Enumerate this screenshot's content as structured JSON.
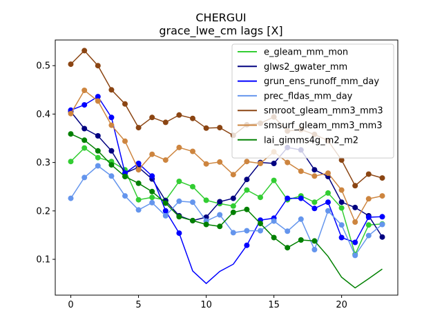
{
  "chart_data": {
    "type": "line",
    "title": "CHERGUI",
    "subtitle": "grace_lwe_cm lags [X]",
    "xlabel": "",
    "ylabel": "",
    "xlim": [
      -1.15,
      24.15
    ],
    "ylim": [
      0.026,
      0.553
    ],
    "xticks": [
      0,
      5,
      10,
      15,
      20
    ],
    "yticks": [
      0.1,
      0.2,
      0.3,
      0.4,
      0.5
    ],
    "ytick_labels": [
      "0.1",
      "0.2",
      "0.3",
      "0.4",
      "0.5"
    ],
    "grid": false,
    "legend_position": "top-right",
    "x": [
      0,
      1,
      2,
      3,
      4,
      5,
      6,
      7,
      8,
      9,
      10,
      11,
      12,
      13,
      14,
      15,
      16,
      17,
      18,
      19,
      20,
      21,
      22,
      23
    ],
    "series": [
      {
        "name": "e_gleam_mm_mon",
        "color": "#32cd32",
        "values": [
          0.302,
          0.33,
          0.31,
          0.302,
          0.285,
          0.223,
          0.228,
          0.222,
          0.261,
          0.25,
          0.222,
          0.215,
          0.21,
          0.243,
          0.228,
          0.263,
          0.223,
          0.231,
          0.218,
          0.237,
          0.206,
          0.11,
          0.171,
          0.173
        ],
        "markers": [
          true,
          true,
          true,
          true,
          true,
          true,
          true,
          true,
          true,
          true,
          true,
          true,
          true,
          true,
          true,
          true,
          true,
          true,
          true,
          true,
          true,
          true,
          true,
          true
        ]
      },
      {
        "name": "glws2_gwater_mm",
        "color": "#000080",
        "values": [
          0.405,
          0.37,
          0.355,
          0.324,
          0.278,
          0.29,
          0.266,
          0.221,
          0.19,
          0.18,
          0.187,
          0.219,
          0.226,
          0.265,
          0.3,
          0.298,
          0.331,
          0.326,
          0.285,
          0.271,
          0.218,
          0.207,
          0.19,
          0.146
        ],
        "markers": [
          true,
          true,
          true,
          true,
          true,
          true,
          true,
          true,
          true,
          true,
          true,
          true,
          true,
          true,
          true,
          true,
          true,
          true,
          true,
          true,
          true,
          true,
          true,
          true
        ]
      },
      {
        "name": "grun_ens_runoff_mm_day",
        "color": "#0000ff",
        "values": [
          0.408,
          0.419,
          0.436,
          0.393,
          0.278,
          0.298,
          0.272,
          0.2,
          0.154,
          0.076,
          0.05,
          0.075,
          0.09,
          0.129,
          0.181,
          0.185,
          0.226,
          0.226,
          0.205,
          0.218,
          0.145,
          0.135,
          0.187,
          0.188
        ],
        "markers": [
          true,
          true,
          true,
          true,
          true,
          true,
          true,
          true,
          true,
          false,
          false,
          false,
          false,
          true,
          true,
          true,
          true,
          true,
          true,
          true,
          true,
          true,
          true,
          true
        ]
      },
      {
        "name": "prec_fldas_mm_day",
        "color": "#6495ed",
        "values": [
          0.226,
          0.269,
          0.293,
          0.272,
          0.231,
          0.202,
          0.217,
          0.19,
          0.22,
          0.218,
          0.179,
          0.192,
          0.155,
          0.159,
          0.159,
          0.179,
          0.158,
          0.183,
          0.12,
          0.2,
          0.171,
          0.108,
          0.149,
          0.172
        ],
        "markers": [
          true,
          true,
          true,
          true,
          true,
          true,
          true,
          true,
          true,
          true,
          true,
          true,
          true,
          true,
          true,
          true,
          true,
          true,
          true,
          true,
          true,
          true,
          true,
          true
        ]
      },
      {
        "name": "smroot_gleam_mm3_mm3",
        "color": "#8b4513",
        "values": [
          0.503,
          0.531,
          0.5,
          0.45,
          0.421,
          0.372,
          0.393,
          0.383,
          0.398,
          0.391,
          0.371,
          0.372,
          0.356,
          0.378,
          0.381,
          0.394,
          0.365,
          0.368,
          0.358,
          0.345,
          0.305,
          0.252,
          0.276,
          0.268
        ],
        "markers": [
          true,
          true,
          true,
          true,
          true,
          true,
          true,
          true,
          true,
          true,
          true,
          true,
          true,
          true,
          true,
          true,
          true,
          true,
          true,
          true,
          true,
          true,
          true,
          true
        ]
      },
      {
        "name": "smsurf_gleam_mm3_mm3",
        "color": "#cd853f",
        "values": [
          0.401,
          0.449,
          0.427,
          0.377,
          0.344,
          0.285,
          0.317,
          0.305,
          0.331,
          0.323,
          0.297,
          0.301,
          0.275,
          0.302,
          0.298,
          0.322,
          0.3,
          0.282,
          0.272,
          0.278,
          0.243,
          0.177,
          0.225,
          0.231
        ],
        "markers": [
          true,
          true,
          true,
          true,
          true,
          true,
          true,
          true,
          true,
          true,
          true,
          true,
          true,
          true,
          true,
          true,
          true,
          true,
          true,
          true,
          true,
          true,
          true,
          true
        ]
      },
      {
        "name": "lai_gimms4g_m2_m2",
        "color": "#008000",
        "values": [
          0.359,
          0.346,
          0.324,
          0.295,
          0.271,
          0.257,
          0.24,
          0.216,
          0.188,
          0.18,
          0.172,
          0.168,
          0.197,
          0.203,
          0.174,
          0.145,
          0.124,
          0.14,
          0.138,
          0.106,
          0.063,
          0.041,
          0.06,
          0.08
        ],
        "markers": [
          true,
          true,
          true,
          true,
          true,
          true,
          true,
          true,
          true,
          true,
          true,
          true,
          true,
          true,
          true,
          true,
          true,
          true,
          true,
          false,
          false,
          false,
          false,
          false
        ]
      }
    ]
  }
}
